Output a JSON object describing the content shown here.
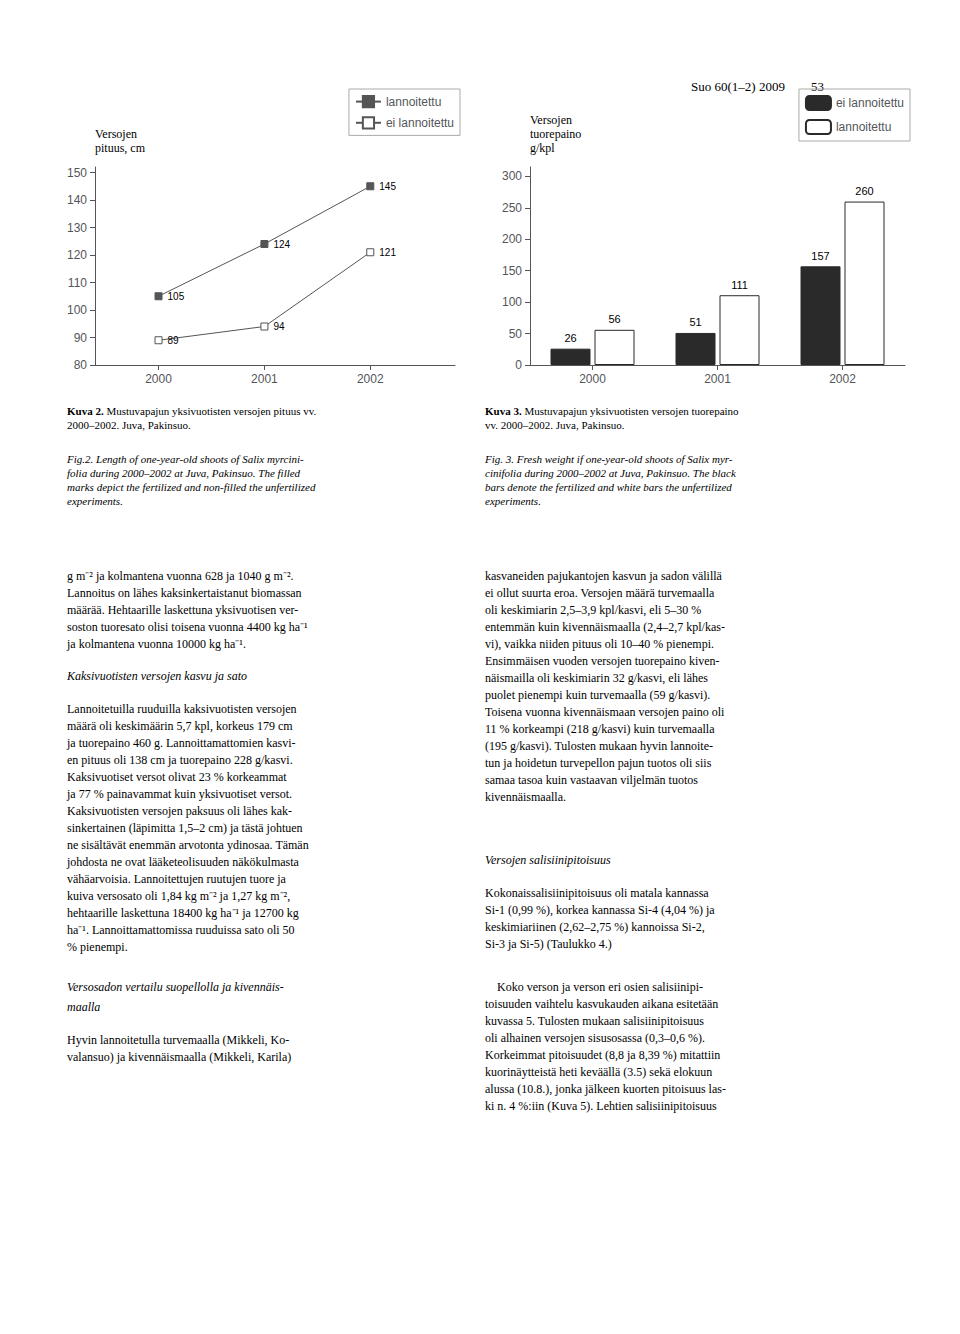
{
  "chart_data": [
    {
      "type": "line",
      "ylabel": "Versojen\npituus, cm",
      "x": [
        2000,
        2001,
        2002
      ],
      "series": [
        {
          "name": "lannoitettu",
          "color": "#555555",
          "marker": "square",
          "values": [
            105,
            124,
            145
          ]
        },
        {
          "name": "ei lannoitettu",
          "color": "#555555",
          "marker": "square_open",
          "values": [
            89,
            94,
            121
          ]
        }
      ],
      "xlim": [
        1999.4,
        2002.8
      ],
      "xticks": [
        2000,
        2001,
        2002
      ],
      "ylim": [
        80,
        152
      ],
      "yticks": [
        80,
        90,
        100,
        110,
        120,
        130,
        140,
        150
      ],
      "grid": false,
      "legend": "upper right",
      "data_labels": true,
      "annotations": [
        {
          "text": "Kuva 2.",
          "style": "bold"
        },
        {
          "text": " Mustuvapajun yksivuotisten versojen pituus vv.\n2000–2002. Juva, Pakinsuo.",
          "style": "normal"
        },
        {
          "text": "Fig.2. Length of one-year-old shoots of Salix myrcini-\nfolia during 2000–2002 at Juva, Pakinsuo. The filled\nmarks depict the fertilized and non-filled the unfertilized\nexperiments.",
          "style": "italic"
        }
      ]
    },
    {
      "type": "bar",
      "ylabel": "Versojen\ntuorepaino\ng/kpl",
      "categories": [
        "2000",
        "2001",
        "2002"
      ],
      "series": [
        {
          "name": "ei lannoitettu",
          "color": "#2a2a2a",
          "values": [
            26,
            51,
            157
          ]
        },
        {
          "name": "lannoitettu",
          "color": "#ffffff",
          "values": [
            56,
            111,
            260
          ]
        }
      ],
      "ylim": [
        0,
        315
      ],
      "yticks": [
        0,
        50,
        100,
        150,
        200,
        250,
        300
      ],
      "grid": false,
      "legend": "upper right",
      "data_labels": true,
      "annotations": [
        {
          "text": "Kuva 3.",
          "style": "bold"
        },
        {
          "text": " Mustuvapajun yksivuotisten versojen tuorepaino\nvv. 2000–2002. Juva, Pakinsuo.",
          "style": "normal"
        },
        {
          "text": "Fig. 3. Fresh weight if one-year-old shoots of Salix myr-\ncinifolia during 2000–2002 at Juva, Pakinsuo. The black\nbars denote the fertilized and white bars the unfertilized\nexperiments.",
          "style": "italic"
        }
      ]
    }
  ],
  "annotations": [
    {
      "text": "Suo 60(1–2) 2009        53",
      "style": "normal"
    },
    {
      "text": "g m⁻² ja kolmantena vuonna 628 ja 1040 g m⁻².\nLannoitus on lähes kaksinkertaistanut biomassan\nmäärää. Hehtaarille laskettuna yksivuotisen ver-\nsoston tuoresato olisi toisena vuonna 4400 kg ha⁻¹\nja kolmantena vuonna 10000 kg ha⁻¹.",
      "style": "normal"
    },
    {
      "text": "Kaksivuotisten versojen kasvu ja sato",
      "style": "italic"
    },
    {
      "text": "Lannoitetuilla ruuduilla kaksivuotisten versojen\nmäärä oli keskimäärin 5,7 kpl, korkeus 179 cm\nja tuorepaino 460 g. Lannoittamattomien kasvi-\nen pituus oli 138 cm ja tuorepaino 228 g/kasvi.\nKaksivuotiset versot olivat 23 % korkeammat\nja 77 % painavammat kuin yksivuotiset versot.\nKaksivuotisten versojen paksuus oli lähes kak-\nsinkertainen (läpimitta 1,5–2 cm) ja tästä johtuen\nne sisältävät enemmän arvotonta ydinosaa. Tämän\njohdosta ne ovat lääketeolisuuden näkökulmasta\nvähäarvoisia. Lannoitettujen ruutujen tuore ja\nkuiva versosato oli 1,84 kg m⁻² ja 1,27 kg m⁻²,\nhehtaarille laskettuna 18400 kg ha⁻¹ ja 12700 kg\nha⁻¹. Lannoittamattomissa ruuduissa sato oli 50\n% pienempi.",
      "style": "normal"
    },
    {
      "text": "Versosadon vertailu suopellolla ja kivennäis-",
      "style": "italic"
    },
    {
      "text": "maalla",
      "style": "italic"
    },
    {
      "text": "Hyvin lannoitetulla turvemaalla (Mikkeli, Ko-\nvalansuo) ja kivennäismaalla (Mikkeli, Karila)",
      "style": "normal"
    },
    {
      "text": "kasvaneiden pajukantojen kasvun ja sadon välillä\nei ollut suurta eroa. Versojen määrä turvemaalla\noli keskimiarin 2,5–3,9 kpl/kasvi, eli 5–30 %\nentemmän kuin kivennäismaalla (2,4–2,7 kpl/kas-\nvi), vaikka niiden pituus oli 10–40 % pienempi.\nEnsimmäisen vuoden versojen tuorepaino kiven-\nnäismailla oli keskimiarin 32 g/kasvi, eli lähes\npuolet pienempi kuin turvemaalla (59 g/kasvi).\nToisena vuonna kivennäismaan versojen paino oli\n11 % korkeampi (218 g/kasvi) kuin turvemaalla\n(195 g/kasvi). Tulosten mukaan hyvin lannoite-\ntun ja hoidetun turvepellon pajun tuotos oli siis\nsamaa tasoa kuin vastaavan viljelmän tuotos\nkivennäismaalla.",
      "style": "normal"
    },
    {
      "text": "Versojen salisiinipitoisuus",
      "style": "italic"
    },
    {
      "text": "Kokonaissalisiinipitoisuus oli matala kannassa\nSi-1 (0,99 %), korkea kannassa Si-4 (4,04 %) ja\nkeskimiariinen (2,62–2,75 %) kannoissa Si-2,\nSi-3 ja Si-5) (Taulukko 4.)",
      "style": "normal"
    },
    {
      "text": "    Koko verson ja verson eri osien salisiinipi-\ntoisuuden vaihtelu kasvukauden aikana esitetään\nkuvassa 5. Tulosten mukaan salisiinipitoisuus\noli alhainen versojen sisusosassa (0,3–0,6 %).\nKorkeimmat pitoisuudet (8,8 ja 8,39 %) mitattiin\nkuorinäytteistä heti keväällä (3.5) sekä elokuun\nalussa (10.8.), jonka jälkeen kuorten pitoisuus las-\nki n. 4 %:iin (Kuva 5). Lehtien salisiinipitoisuus",
      "style": "normal"
    }
  ]
}
